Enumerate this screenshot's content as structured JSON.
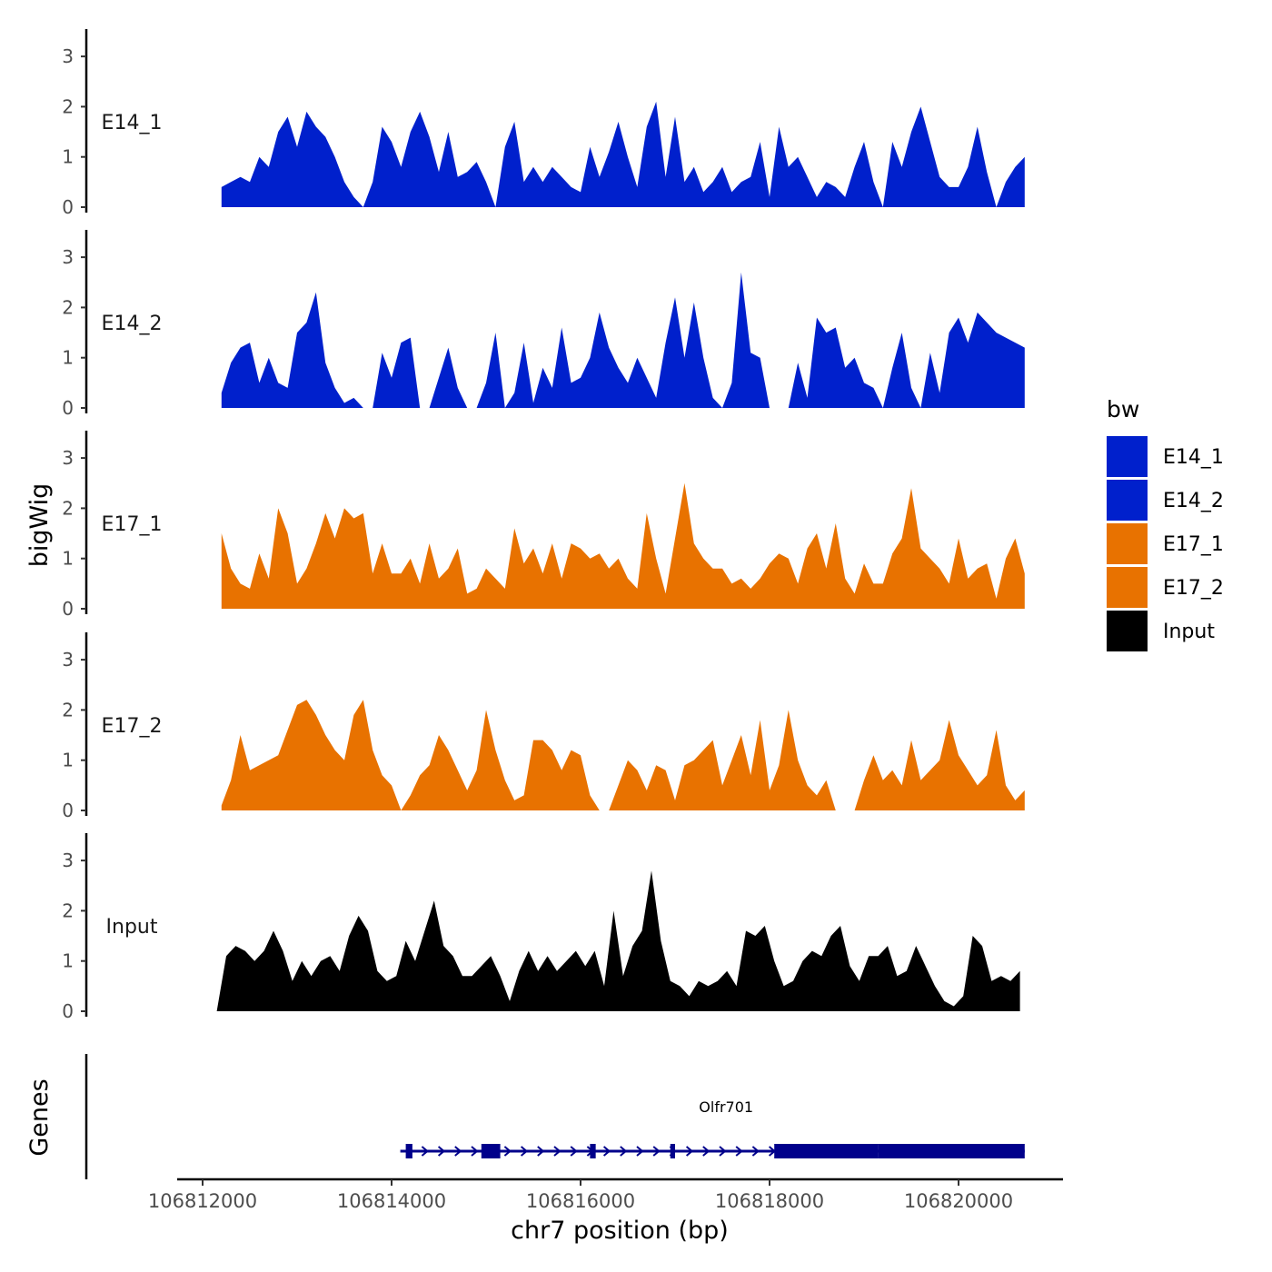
{
  "chart_data": {
    "type": "area",
    "ylabel": "bigWig",
    "xlabel": "chr7 position (bp)",
    "genes_label": "Genes",
    "x_range": [
      106812000,
      106820700
    ],
    "x_ticks": [
      106812000,
      106814000,
      106816000,
      106818000,
      106820000
    ],
    "x_tick_labels": [
      "106812000",
      "106814000",
      "106816000",
      "106818000",
      "106820000"
    ],
    "y_range": [
      0,
      3.5
    ],
    "y_ticks": [
      0,
      1,
      2,
      3
    ],
    "y_tick_labels": [
      "0",
      "1",
      "2",
      "3"
    ],
    "legend": {
      "title": "bw",
      "entries": [
        {
          "name": "E14_1",
          "color": "#0020cc"
        },
        {
          "name": "E14_2",
          "color": "#0020cc"
        },
        {
          "name": "E17_1",
          "color": "#e87200"
        },
        {
          "name": "E17_2",
          "color": "#e87200"
        },
        {
          "name": "Input",
          "color": "#000000"
        }
      ]
    },
    "tracks": [
      {
        "name": "E14_1",
        "color": "#0020cc",
        "x": [
          106812200,
          106812300,
          106812400,
          106812500,
          106812600,
          106812700,
          106812800,
          106812900,
          106813000,
          106813100,
          106813200,
          106813300,
          106813400,
          106813500,
          106813600,
          106813700,
          106813800,
          106813900,
          106814000,
          106814100,
          106814200,
          106814300,
          106814400,
          106814500,
          106814600,
          106814700,
          106814800,
          106814900,
          106815000,
          106815100,
          106815200,
          106815300,
          106815400,
          106815500,
          106815600,
          106815700,
          106815800,
          106815900,
          106816000,
          106816100,
          106816200,
          106816300,
          106816400,
          106816500,
          106816600,
          106816700,
          106816800,
          106816900,
          106817000,
          106817100,
          106817200,
          106817300,
          106817400,
          106817500,
          106817600,
          106817700,
          106817800,
          106817900,
          106818000,
          106818100,
          106818200,
          106818300,
          106818400,
          106818500,
          106818600,
          106818700,
          106818800,
          106818900,
          106819000,
          106819100,
          106819200,
          106819300,
          106819400,
          106819500,
          106819600,
          106819700,
          106819800,
          106819900,
          106820000,
          106820100,
          106820200,
          106820300,
          106820400,
          106820500,
          106820600,
          106820700
        ],
        "values": [
          0.4,
          0.5,
          0.6,
          0.5,
          1.0,
          0.8,
          1.5,
          1.8,
          1.2,
          1.9,
          1.6,
          1.4,
          1.0,
          0.5,
          0.2,
          0.0,
          0.5,
          1.6,
          1.3,
          0.8,
          1.5,
          1.9,
          1.4,
          0.7,
          1.5,
          0.6,
          0.7,
          0.9,
          0.5,
          0.0,
          1.2,
          1.7,
          0.5,
          0.8,
          0.5,
          0.8,
          0.6,
          0.4,
          0.3,
          1.2,
          0.6,
          1.1,
          1.7,
          1.0,
          0.4,
          1.6,
          2.1,
          0.6,
          1.8,
          0.5,
          0.8,
          0.3,
          0.5,
          0.8,
          0.3,
          0.5,
          0.6,
          1.3,
          0.2,
          1.6,
          0.8,
          1.0,
          0.6,
          0.2,
          0.5,
          0.4,
          0.2,
          0.8,
          1.3,
          0.5,
          0.0,
          1.3,
          0.8,
          1.5,
          2.0,
          1.3,
          0.6,
          0.4,
          0.4,
          0.8,
          1.6,
          0.7,
          0.0,
          0.5,
          0.8,
          1.0
        ]
      },
      {
        "name": "E14_2",
        "color": "#0020cc",
        "x": [
          106812200,
          106812300,
          106812400,
          106812500,
          106812600,
          106812700,
          106812800,
          106812900,
          106813000,
          106813100,
          106813200,
          106813300,
          106813400,
          106813500,
          106813600,
          106813700,
          106813800,
          106813900,
          106814000,
          106814100,
          106814200,
          106814300,
          106814400,
          106814500,
          106814600,
          106814700,
          106814800,
          106814900,
          106815000,
          106815100,
          106815200,
          106815300,
          106815400,
          106815500,
          106815600,
          106815700,
          106815800,
          106815900,
          106816000,
          106816100,
          106816200,
          106816300,
          106816400,
          106816500,
          106816600,
          106816700,
          106816800,
          106816900,
          106817000,
          106817100,
          106817200,
          106817300,
          106817400,
          106817500,
          106817600,
          106817700,
          106817800,
          106817900,
          106818000,
          106818100,
          106818200,
          106818300,
          106818400,
          106818500,
          106818600,
          106818700,
          106818800,
          106818900,
          106819000,
          106819100,
          106819200,
          106819300,
          106819400,
          106819500,
          106819600,
          106819700,
          106819800,
          106819900,
          106820000,
          106820100,
          106820200,
          106820300,
          106820400,
          106820500,
          106820600,
          106820700
        ],
        "values": [
          0.3,
          0.9,
          1.2,
          1.3,
          0.5,
          1.0,
          0.5,
          0.4,
          1.5,
          1.7,
          2.3,
          0.9,
          0.4,
          0.1,
          0.2,
          0.0,
          0.0,
          1.1,
          0.6,
          1.3,
          1.4,
          0.0,
          0.0,
          0.6,
          1.2,
          0.4,
          0.0,
          0.0,
          0.5,
          1.5,
          0.0,
          0.3,
          1.3,
          0.1,
          0.8,
          0.4,
          1.6,
          0.5,
          0.6,
          1.0,
          1.9,
          1.2,
          0.8,
          0.5,
          1.0,
          0.6,
          0.2,
          1.3,
          2.2,
          1.0,
          2.1,
          1.0,
          0.2,
          0.0,
          0.5,
          2.7,
          1.1,
          1.0,
          0.0,
          0.0,
          0.0,
          0.9,
          0.2,
          1.8,
          1.5,
          1.6,
          0.8,
          1.0,
          0.5,
          0.4,
          0.0,
          0.8,
          1.5,
          0.4,
          0.0,
          1.1,
          0.3,
          1.5,
          1.8,
          1.3,
          1.9,
          1.7,
          1.5,
          1.4,
          1.3,
          1.2
        ]
      },
      {
        "name": "E17_1",
        "color": "#e87200",
        "x": [
          106812200,
          106812300,
          106812400,
          106812500,
          106812600,
          106812700,
          106812800,
          106812900,
          106813000,
          106813100,
          106813200,
          106813300,
          106813400,
          106813500,
          106813600,
          106813700,
          106813800,
          106813900,
          106814000,
          106814100,
          106814200,
          106814300,
          106814400,
          106814500,
          106814600,
          106814700,
          106814800,
          106814900,
          106815000,
          106815100,
          106815200,
          106815300,
          106815400,
          106815500,
          106815600,
          106815700,
          106815800,
          106815900,
          106816000,
          106816100,
          106816200,
          106816300,
          106816400,
          106816500,
          106816600,
          106816700,
          106816800,
          106816900,
          106817000,
          106817100,
          106817200,
          106817300,
          106817400,
          106817500,
          106817600,
          106817700,
          106817800,
          106817900,
          106818000,
          106818100,
          106818200,
          106818300,
          106818400,
          106818500,
          106818600,
          106818700,
          106818800,
          106818900,
          106819000,
          106819100,
          106819200,
          106819300,
          106819400,
          106819500,
          106819600,
          106819700,
          106819800,
          106819900,
          106820000,
          106820100,
          106820200,
          106820300,
          106820400,
          106820500,
          106820600,
          106820700
        ],
        "values": [
          1.5,
          0.8,
          0.5,
          0.4,
          1.1,
          0.6,
          2.0,
          1.5,
          0.5,
          0.8,
          1.3,
          1.9,
          1.4,
          2.0,
          1.8,
          1.9,
          0.7,
          1.3,
          0.7,
          0.7,
          1.0,
          0.5,
          1.3,
          0.6,
          0.8,
          1.2,
          0.3,
          0.4,
          0.8,
          0.6,
          0.4,
          1.6,
          0.9,
          1.2,
          0.7,
          1.3,
          0.6,
          1.3,
          1.2,
          1.0,
          1.1,
          0.8,
          1.0,
          0.6,
          0.4,
          1.9,
          1.0,
          0.3,
          1.4,
          2.5,
          1.3,
          1.0,
          0.8,
          0.8,
          0.5,
          0.6,
          0.4,
          0.6,
          0.9,
          1.1,
          1.0,
          0.5,
          1.2,
          1.5,
          0.8,
          1.7,
          0.6,
          0.3,
          0.9,
          0.5,
          0.5,
          1.1,
          1.4,
          2.4,
          1.2,
          1.0,
          0.8,
          0.5,
          1.4,
          0.6,
          0.8,
          0.9,
          0.2,
          1.0,
          1.4,
          0.7
        ]
      },
      {
        "name": "E17_2",
        "color": "#e87200",
        "x": [
          106812200,
          106812300,
          106812400,
          106812500,
          106812600,
          106812700,
          106812800,
          106812900,
          106813000,
          106813100,
          106813200,
          106813300,
          106813400,
          106813500,
          106813600,
          106813700,
          106813800,
          106813900,
          106814000,
          106814100,
          106814200,
          106814300,
          106814400,
          106814500,
          106814600,
          106814700,
          106814800,
          106814900,
          106815000,
          106815100,
          106815200,
          106815300,
          106815400,
          106815500,
          106815600,
          106815700,
          106815800,
          106815900,
          106816000,
          106816100,
          106816200,
          106816300,
          106816400,
          106816500,
          106816600,
          106816700,
          106816800,
          106816900,
          106817000,
          106817100,
          106817200,
          106817300,
          106817400,
          106817500,
          106817600,
          106817700,
          106817800,
          106817900,
          106818000,
          106818100,
          106818200,
          106818300,
          106818400,
          106818500,
          106818600,
          106818700,
          106818800,
          106818900,
          106819000,
          106819100,
          106819200,
          106819300,
          106819400,
          106819500,
          106819600,
          106819700,
          106819800,
          106819900,
          106820000,
          106820100,
          106820200,
          106820300,
          106820400,
          106820500,
          106820600,
          106820700
        ],
        "values": [
          0.1,
          0.6,
          1.5,
          0.8,
          0.9,
          1.0,
          1.1,
          1.6,
          2.1,
          2.2,
          1.9,
          1.5,
          1.2,
          1.0,
          1.9,
          2.2,
          1.2,
          0.7,
          0.5,
          0.0,
          0.3,
          0.7,
          0.9,
          1.5,
          1.2,
          0.8,
          0.4,
          0.8,
          2.0,
          1.2,
          0.6,
          0.2,
          0.3,
          1.4,
          1.4,
          1.2,
          0.8,
          1.2,
          1.1,
          0.3,
          0.0,
          0.0,
          0.5,
          1.0,
          0.8,
          0.4,
          0.9,
          0.8,
          0.2,
          0.9,
          1.0,
          1.2,
          1.4,
          0.5,
          1.0,
          1.5,
          0.7,
          1.8,
          0.4,
          0.9,
          2.0,
          1.0,
          0.5,
          0.3,
          0.6,
          0.0,
          0.0,
          0.0,
          0.6,
          1.1,
          0.6,
          0.8,
          0.5,
          1.4,
          0.6,
          0.8,
          1.0,
          1.8,
          1.1,
          0.8,
          0.5,
          0.7,
          1.6,
          0.5,
          0.2,
          0.4
        ]
      },
      {
        "name": "Input",
        "color": "#000000",
        "x": [
          106812150,
          106812250,
          106812350,
          106812450,
          106812550,
          106812650,
          106812750,
          106812850,
          106812950,
          106813050,
          106813150,
          106813250,
          106813350,
          106813450,
          106813550,
          106813650,
          106813750,
          106813850,
          106813950,
          106814050,
          106814150,
          106814250,
          106814350,
          106814450,
          106814550,
          106814650,
          106814750,
          106814850,
          106814950,
          106815050,
          106815150,
          106815250,
          106815350,
          106815450,
          106815550,
          106815650,
          106815750,
          106815850,
          106815950,
          106816050,
          106816150,
          106816250,
          106816350,
          106816450,
          106816550,
          106816650,
          106816750,
          106816850,
          106816950,
          106817050,
          106817150,
          106817250,
          106817350,
          106817450,
          106817550,
          106817650,
          106817750,
          106817850,
          106817950,
          106818050,
          106818150,
          106818250,
          106818350,
          106818450,
          106818550,
          106818650,
          106818750,
          106818850,
          106818950,
          106819050,
          106819150,
          106819250,
          106819350,
          106819450,
          106819550,
          106819650,
          106819750,
          106819850,
          106819950,
          106820050,
          106820150,
          106820250,
          106820350,
          106820450,
          106820550,
          106820650
        ],
        "values": [
          0.0,
          1.1,
          1.3,
          1.2,
          1.0,
          1.2,
          1.6,
          1.2,
          0.6,
          1.0,
          0.7,
          1.0,
          1.1,
          0.8,
          1.5,
          1.9,
          1.6,
          0.8,
          0.6,
          0.7,
          1.4,
          1.0,
          1.6,
          2.2,
          1.3,
          1.1,
          0.7,
          0.7,
          0.9,
          1.1,
          0.7,
          0.2,
          0.8,
          1.2,
          0.8,
          1.1,
          0.8,
          1.0,
          1.2,
          0.9,
          1.2,
          0.5,
          2.0,
          0.7,
          1.3,
          1.6,
          2.8,
          1.4,
          0.6,
          0.5,
          0.3,
          0.6,
          0.5,
          0.6,
          0.8,
          0.5,
          1.6,
          1.5,
          1.7,
          1.0,
          0.5,
          0.6,
          1.0,
          1.2,
          1.1,
          1.5,
          1.7,
          0.9,
          0.6,
          1.1,
          1.1,
          1.3,
          0.7,
          0.8,
          1.3,
          0.9,
          0.5,
          0.2,
          0.1,
          0.3,
          1.5,
          1.3,
          0.6,
          0.7,
          0.6,
          0.8
        ]
      }
    ],
    "gene": {
      "name": "Olfr701",
      "start": 106814150,
      "end": 106820700,
      "strand": "+",
      "exons": [
        [
          106814150,
          106814220
        ],
        [
          106814950,
          106815150
        ],
        [
          106816100,
          106816160
        ],
        [
          106816950,
          106817000
        ],
        [
          106818050,
          106819150
        ],
        [
          106819150,
          106820700
        ]
      ]
    }
  }
}
